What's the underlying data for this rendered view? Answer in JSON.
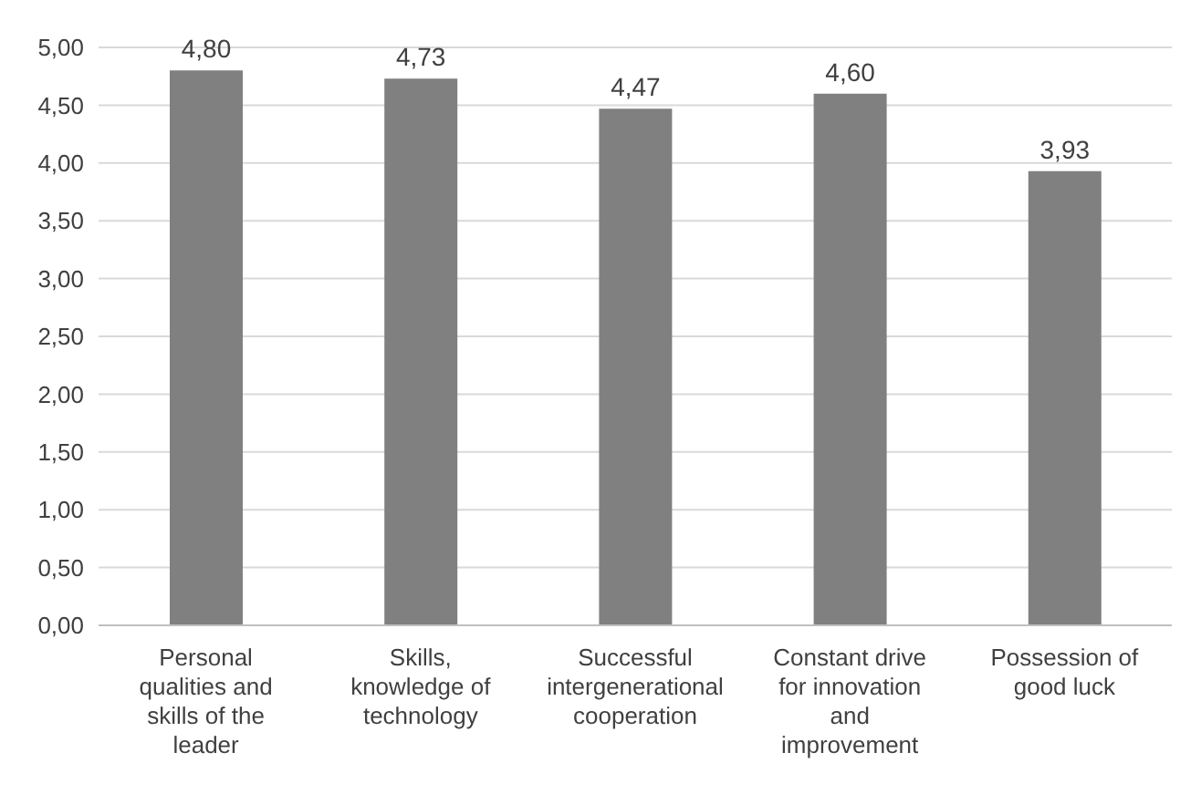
{
  "chart_data": {
    "type": "bar",
    "categories": [
      "Personal qualities and skills of the leader",
      "Skills, knowledge of technology",
      "Successful intergenerational cooperation",
      "Constant drive for innovation and improvement",
      "Possession of good luck"
    ],
    "values": [
      4.8,
      4.73,
      4.47,
      4.6,
      3.93
    ],
    "value_labels": [
      "4,80",
      "4,73",
      "4,47",
      "4,60",
      "3,93"
    ],
    "color": "#808080",
    "ylim": [
      0,
      5
    ],
    "yticks": [
      {
        "value": 0,
        "label": "0,00"
      },
      {
        "value": 0.5,
        "label": "0,50"
      },
      {
        "value": 1,
        "label": "1,00"
      },
      {
        "value": 1.5,
        "label": "1,50"
      },
      {
        "value": 2,
        "label": "2,00"
      },
      {
        "value": 2.5,
        "label": "2,50"
      },
      {
        "value": 3,
        "label": "3,00"
      },
      {
        "value": 3.5,
        "label": "3,50"
      },
      {
        "value": 4,
        "label": "4,00"
      },
      {
        "value": 4.5,
        "label": "4,50"
      },
      {
        "value": 5,
        "label": "5,00"
      }
    ],
    "grid": "y"
  }
}
